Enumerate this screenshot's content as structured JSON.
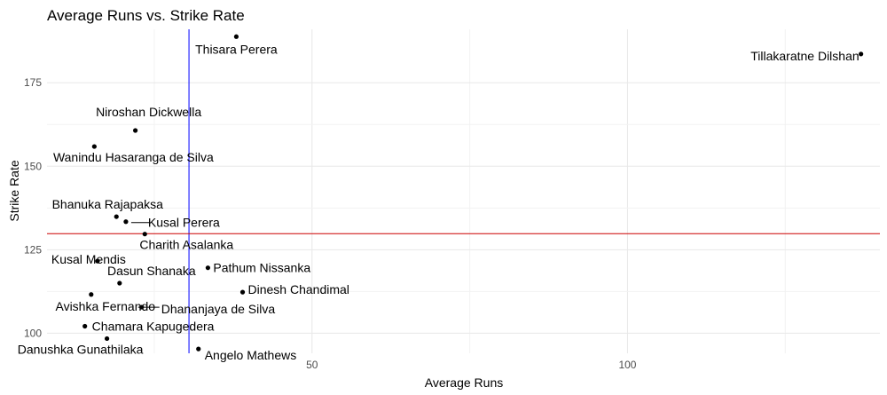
{
  "chart_data": {
    "type": "scatter",
    "title": "Average Runs vs. Strike Rate",
    "xlabel": "Average Runs",
    "ylabel": "Strike Rate",
    "xlim": [
      8,
      140
    ],
    "ylim": [
      94,
      191
    ],
    "x_ticks": [
      50,
      100
    ],
    "x_tick_labels": [
      "50",
      "100"
    ],
    "y_ticks": [
      100,
      125,
      150,
      175
    ],
    "y_tick_labels": [
      "100",
      "125",
      "150",
      "175"
    ],
    "grid": true,
    "reference_lines": [
      {
        "orientation": "vertical",
        "value": 30.5,
        "color": "#0000ff"
      },
      {
        "orientation": "horizontal",
        "value": 129.8,
        "color": "#cc0000"
      }
    ],
    "points": [
      {
        "label": "Thisara Perera",
        "x": 38.0,
        "y": 188.8
      },
      {
        "label": "Tillakaratne Dilshan",
        "x": 137.0,
        "y": 183.6
      },
      {
        "label": "Niroshan Dickwella",
        "x": 22.0,
        "y": 160.7
      },
      {
        "label": "Wanindu Hasaranga de Silva",
        "x": 15.5,
        "y": 155.9
      },
      {
        "label": "Bhanuka Rajapaksa",
        "x": 19.0,
        "y": 134.9
      },
      {
        "label": "Kusal Perera",
        "x": 20.5,
        "y": 133.4
      },
      {
        "label": "Charith Asalanka",
        "x": 23.5,
        "y": 129.7
      },
      {
        "label": "Kusal Mendis",
        "x": 16.0,
        "y": 121.6
      },
      {
        "label": "Pathum Nissanka",
        "x": 33.5,
        "y": 119.6
      },
      {
        "label": "Dasun Shanaka",
        "x": 19.5,
        "y": 115.0
      },
      {
        "label": "Dinesh Chandimal",
        "x": 39.0,
        "y": 112.3
      },
      {
        "label": "Avishka Fernando",
        "x": 15.0,
        "y": 111.6
      },
      {
        "label": "Dhananjaya de Silva",
        "x": 23.0,
        "y": 107.8
      },
      {
        "label": "Chamara Kapugedera",
        "x": 14.0,
        "y": 102.1
      },
      {
        "label": "Danushka Gunathilaka",
        "x": 17.5,
        "y": 98.4
      },
      {
        "label": "Angelo Mathews",
        "x": 32.0,
        "y": 95.3
      }
    ]
  }
}
